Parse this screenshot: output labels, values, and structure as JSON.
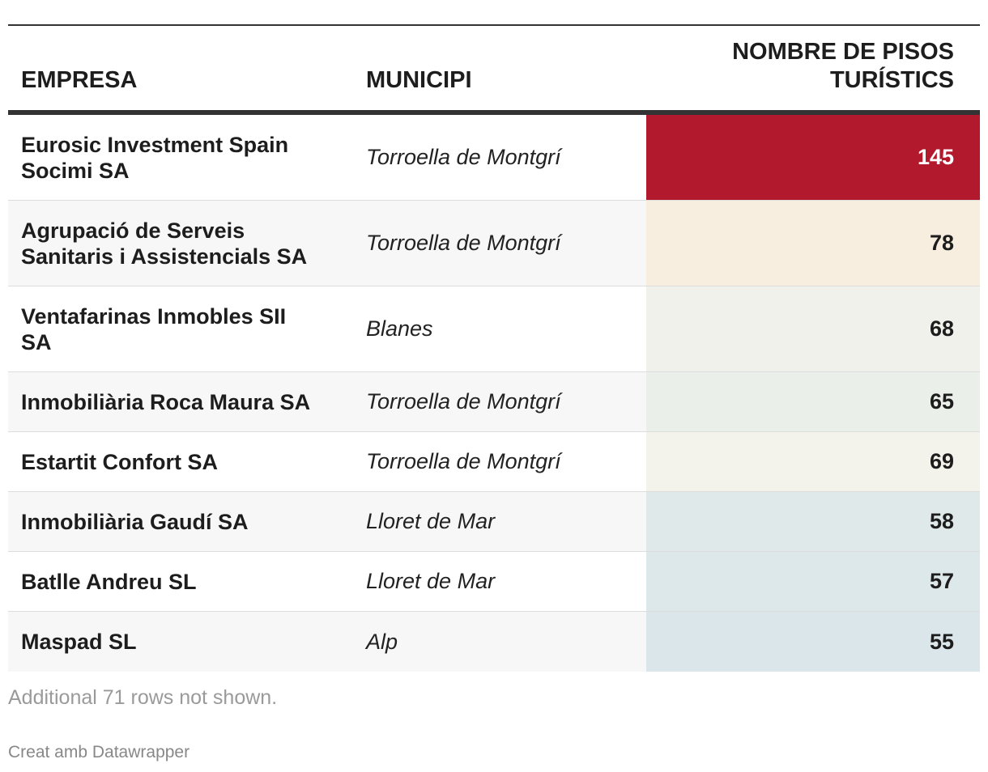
{
  "chart_data": {
    "type": "table",
    "columns": [
      "EMPRESA",
      "MUNICIPI",
      "NOMBRE DE PISOS TURÍSTICS"
    ],
    "rows": [
      {
        "empresa": "Eurosic Investment Spain Socimi SA",
        "municipi": "Torroella de Montgrí",
        "pisos": 145,
        "color": "#b3192c",
        "text_color": "#ffffff"
      },
      {
        "empresa": "Agrupació de Serveis Sanitaris i Assistencials SA",
        "municipi": "Torroella de Montgrí",
        "pisos": 78,
        "color": "#f8eedf",
        "text_color": "#1d1d1d"
      },
      {
        "empresa": "Ventafarinas Inmobles SII SA",
        "municipi": "Blanes",
        "pisos": 68,
        "color": "#f0f1eb",
        "text_color": "#1d1d1d"
      },
      {
        "empresa": "Inmobiliària Roca Maura SA",
        "municipi": "Torroella de Montgrí",
        "pisos": 65,
        "color": "#eaefea",
        "text_color": "#1d1d1d"
      },
      {
        "empresa": "Estartit Confort SA",
        "municipi": "Torroella de Montgrí",
        "pisos": 69,
        "color": "#f3f3ec",
        "text_color": "#1d1d1d"
      },
      {
        "empresa": "Inmobiliària Gaudí SA",
        "municipi": "Lloret de Mar",
        "pisos": 58,
        "color": "#e0e9ea",
        "text_color": "#1d1d1d"
      },
      {
        "empresa": "Batlle Andreu SL",
        "municipi": "Lloret de Mar",
        "pisos": 57,
        "color": "#dde8eb",
        "text_color": "#1d1d1d"
      },
      {
        "empresa": "Maspad SL",
        "municipi": "Alp",
        "pisos": 55,
        "color": "#dbe6eb",
        "text_color": "#1d1d1d"
      }
    ]
  },
  "header": {
    "empresa": "EMPRESA",
    "municipi": "MUNICIPI",
    "pisos_line1": "NOMBRE DE PISOS",
    "pisos_line2": "TURÍSTICS"
  },
  "footer": {
    "note": "Additional 71 rows not shown.",
    "credit": "Creat amb Datawrapper"
  }
}
